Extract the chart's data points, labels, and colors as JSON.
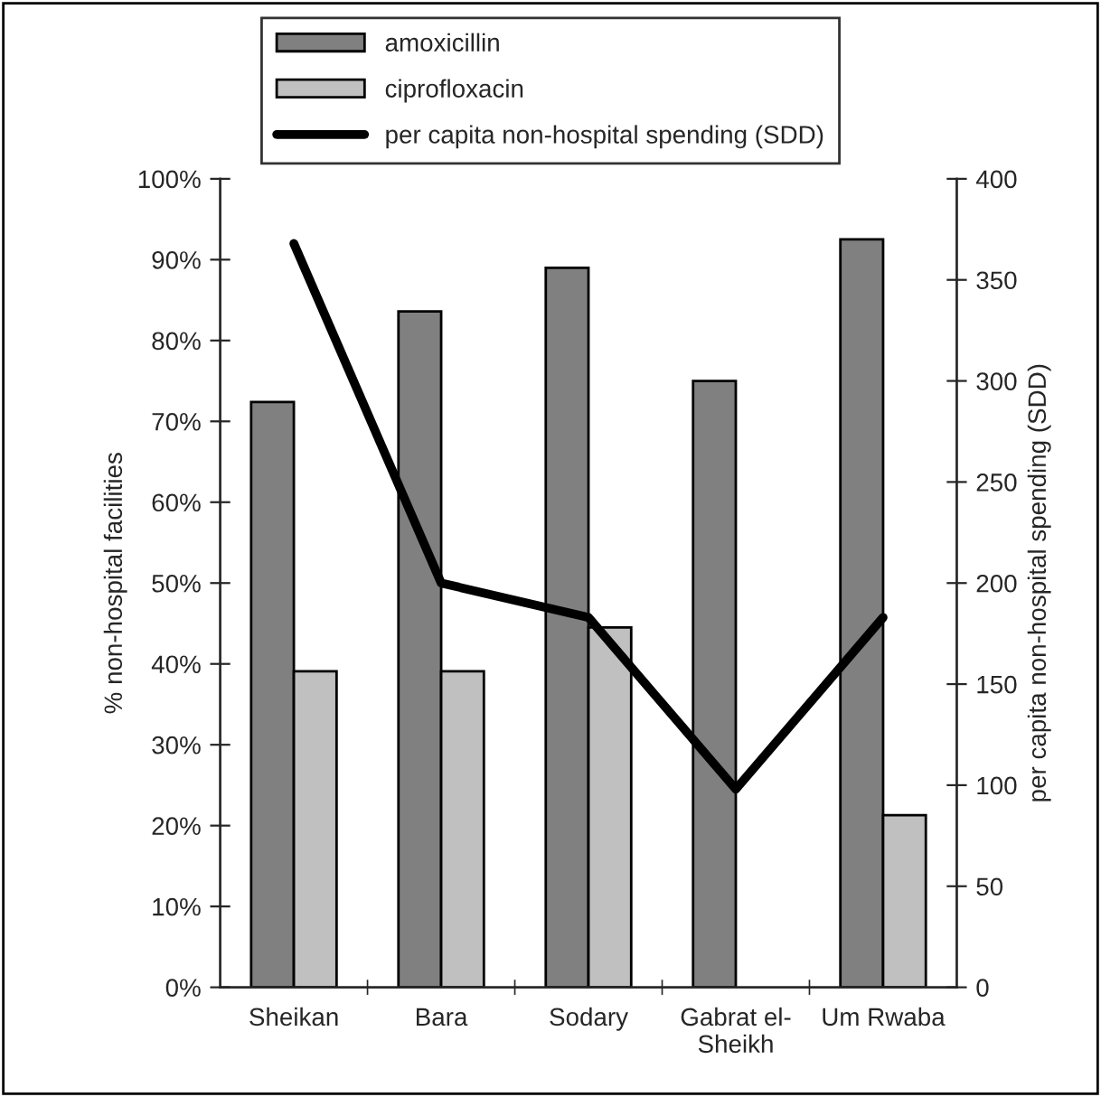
{
  "chart_data": {
    "type": "bar",
    "categories": [
      "Sheikan",
      "Bara",
      "Sodary",
      "Gabrat el-\nSheikh",
      "Um Rwaba"
    ],
    "series": [
      {
        "name": "amoxicillin",
        "color": "#808080",
        "values": [
          72.4,
          83.6,
          89.0,
          75.0,
          92.5
        ]
      },
      {
        "name": "ciprofloxacin",
        "color": "#c0c0c0",
        "values": [
          39.1,
          39.1,
          44.5,
          null,
          21.3
        ]
      },
      {
        "name": "per capita non-hospital spending (SDD)",
        "type": "line",
        "axis": "y2",
        "color": "#000000",
        "values": [
          368,
          200,
          183,
          98,
          183
        ]
      }
    ],
    "ylabel": "% non-hospital facilities",
    "y2label": "per capita non-hospital spending (SDD)",
    "ylim": [
      0,
      100
    ],
    "yticks": [
      {
        "value": 0,
        "label": "0%"
      },
      {
        "value": 10,
        "label": "10%"
      },
      {
        "value": 20,
        "label": "20%"
      },
      {
        "value": 30,
        "label": "30%"
      },
      {
        "value": 40,
        "label": "40%"
      },
      {
        "value": 50,
        "label": "50%"
      },
      {
        "value": 60,
        "label": "60%"
      },
      {
        "value": 70,
        "label": "70%"
      },
      {
        "value": 80,
        "label": "80%"
      },
      {
        "value": 90,
        "label": "90%"
      },
      {
        "value": 100,
        "label": "100%"
      }
    ],
    "y2lim": [
      0,
      400
    ],
    "y2ticks": [
      0,
      50,
      100,
      150,
      200,
      250,
      300,
      350,
      400
    ],
    "legend": "top",
    "grid": false,
    "line_style": "solid",
    "marker": "none"
  }
}
